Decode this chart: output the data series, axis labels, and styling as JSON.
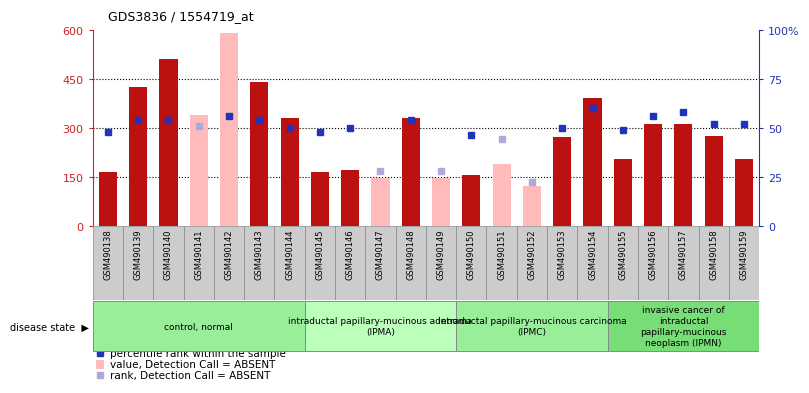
{
  "title": "GDS3836 / 1554719_at",
  "samples": [
    "GSM490138",
    "GSM490139",
    "GSM490140",
    "GSM490141",
    "GSM490142",
    "GSM490143",
    "GSM490144",
    "GSM490145",
    "GSM490146",
    "GSM490147",
    "GSM490148",
    "GSM490149",
    "GSM490150",
    "GSM490151",
    "GSM490152",
    "GSM490153",
    "GSM490154",
    "GSM490155",
    "GSM490156",
    "GSM490157",
    "GSM490158",
    "GSM490159"
  ],
  "count_values": [
    165,
    425,
    510,
    340,
    590,
    440,
    330,
    165,
    170,
    145,
    330,
    145,
    155,
    190,
    120,
    270,
    390,
    205,
    310,
    310,
    275,
    205
  ],
  "count_absent": [
    false,
    false,
    false,
    true,
    true,
    false,
    false,
    false,
    false,
    true,
    false,
    true,
    false,
    true,
    true,
    false,
    false,
    false,
    false,
    false,
    false,
    false
  ],
  "percentile_values": [
    48,
    54,
    54,
    51,
    56,
    54,
    50,
    48,
    50,
    28,
    54,
    28,
    46,
    44,
    22,
    50,
    60,
    49,
    56,
    58,
    52,
    52
  ],
  "percentile_absent": [
    false,
    false,
    false,
    true,
    false,
    false,
    false,
    false,
    false,
    true,
    false,
    true,
    false,
    true,
    true,
    false,
    false,
    false,
    false,
    false,
    false,
    false
  ],
  "groups": [
    {
      "label": "control, normal",
      "start": 0,
      "end": 7,
      "color": "#99ee99"
    },
    {
      "label": "intraductal papillary-mucinous adenoma\n(IPMA)",
      "start": 7,
      "end": 12,
      "color": "#bbffbb"
    },
    {
      "label": "intraductal papillary-mucinous carcinoma\n(IPMC)",
      "start": 12,
      "end": 17,
      "color": "#99ee99"
    },
    {
      "label": "invasive cancer of\nintraductal\npapillary-mucinous\nneoplasm (IPMN)",
      "start": 17,
      "end": 22,
      "color": "#77dd77"
    }
  ],
  "bar_color_present": "#bb1111",
  "bar_color_absent": "#ffbbbb",
  "dot_color_present": "#2233bb",
  "dot_color_absent": "#aaaadd",
  "label_bg": "#cccccc",
  "ylim_left": [
    0,
    600
  ],
  "ylim_right": [
    0,
    100
  ],
  "yticks_left": [
    0,
    150,
    300,
    450,
    600
  ],
  "ytick_labels_left": [
    "0",
    "150",
    "300",
    "450",
    "600"
  ],
  "yticks_right": [
    0,
    25,
    50,
    75,
    100
  ],
  "ytick_labels_right": [
    "0",
    "25",
    "50",
    "75",
    "100%"
  ]
}
